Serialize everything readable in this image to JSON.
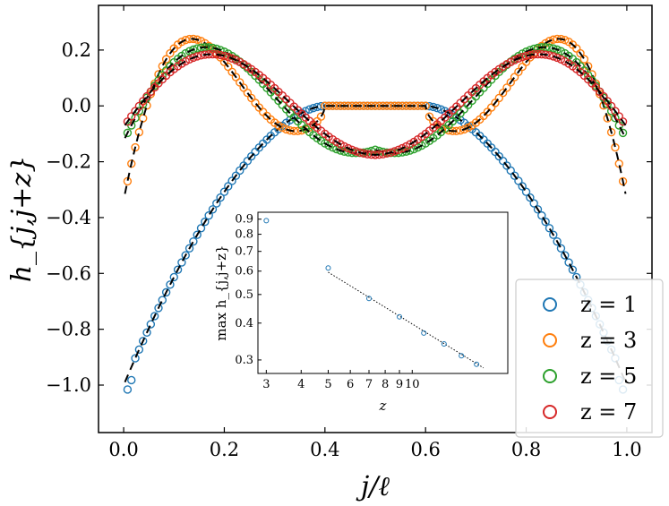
{
  "chart_data": {
    "type": "scatter",
    "title": "",
    "xlabel": "j/ℓ",
    "ylabel": "h_{j,j+z}",
    "xlim": [
      -0.05,
      1.05
    ],
    "ylim": [
      -1.17,
      0.36
    ],
    "xticks": [
      "0.0",
      "0.2",
      "0.4",
      "0.6",
      "0.8",
      "1.0"
    ],
    "yticks": [
      "0.2",
      "0.0",
      "−0.2",
      "−0.4",
      "−0.6",
      "−0.8",
      "−1.0"
    ],
    "legend_position": "lower-right",
    "series": [
      {
        "name": "z = 1",
        "z": 1,
        "color": "#1f77b4",
        "dashed_fit": "black dashed curve"
      },
      {
        "name": "z = 3",
        "z": 3,
        "color": "#ff7f0e",
        "dashed_fit": "black dashed curve"
      },
      {
        "name": "z = 5",
        "z": 5,
        "color": "#2ca02c",
        "dashed_fit": "black dashed curve"
      },
      {
        "name": "z = 7",
        "z": 7,
        "color": "#d62728",
        "dashed_fit": "black dashed curve"
      }
    ],
    "legend": [
      "z = 1",
      "z = 3",
      "z = 5",
      "z = 7"
    ],
    "inset": {
      "type": "scatter",
      "scale": "log-log",
      "xlabel": "z",
      "ylabel": "max h_{j,j+z}",
      "xlim": [
        2.8,
        22
      ],
      "ylim": [
        0.27,
        0.95
      ],
      "xticks": [
        "3",
        "4",
        "5",
        "6",
        "7",
        "8",
        "9",
        "10"
      ],
      "yticks": [
        "0.9",
        "0.8",
        "0.7",
        "0.6",
        "0.5",
        "0.4",
        "0.3"
      ],
      "points": [
        {
          "x": 3,
          "y": 0.89
        },
        {
          "x": 5,
          "y": 0.615
        },
        {
          "x": 7,
          "y": 0.485
        },
        {
          "x": 9,
          "y": 0.42
        },
        {
          "x": 11,
          "y": 0.37
        },
        {
          "x": 13,
          "y": 0.34
        },
        {
          "x": 15,
          "y": 0.31
        },
        {
          "x": 17,
          "y": 0.29
        }
      ],
      "fit_line": {
        "x": [
          5,
          18
        ],
        "y": [
          0.595,
          0.282
        ]
      },
      "color": "#1f77b4"
    }
  }
}
